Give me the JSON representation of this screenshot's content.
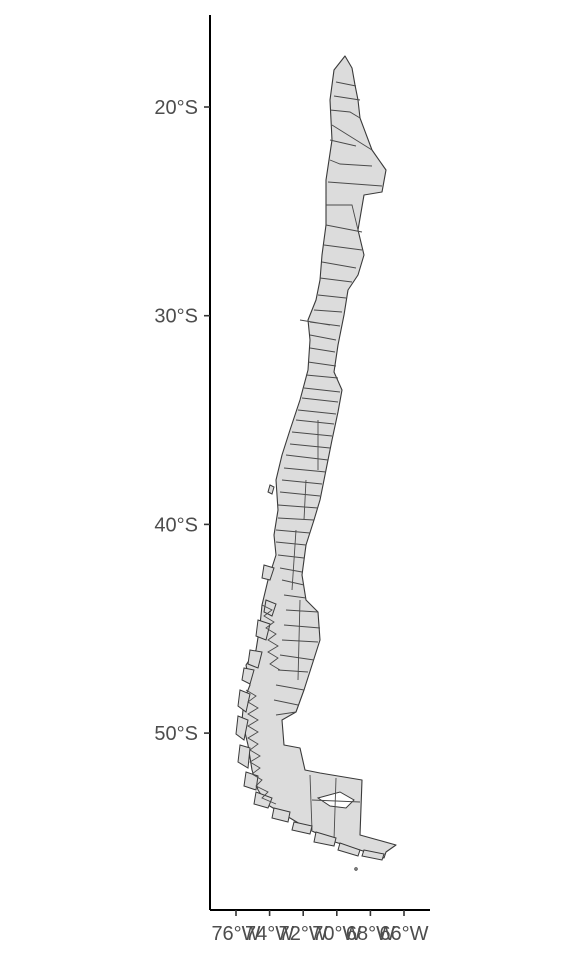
{
  "map": {
    "fill_color": "#dcdcdc",
    "border_color": "#3a3a3a",
    "y_axis": {
      "ticks": [
        {
          "value": -20,
          "label": "20°S"
        },
        {
          "value": -30,
          "label": "30°S"
        },
        {
          "value": -40,
          "label": "40°S"
        },
        {
          "value": -50,
          "label": "50°S"
        }
      ]
    },
    "x_axis": {
      "ticks": [
        {
          "value": -76,
          "label": "76°W"
        },
        {
          "value": -74,
          "label": "74°W"
        },
        {
          "value": -72,
          "label": "72°W"
        },
        {
          "value": -70,
          "label": "70°W"
        },
        {
          "value": -68,
          "label": "68°W"
        },
        {
          "value": -66,
          "label": "66°W"
        }
      ]
    }
  }
}
